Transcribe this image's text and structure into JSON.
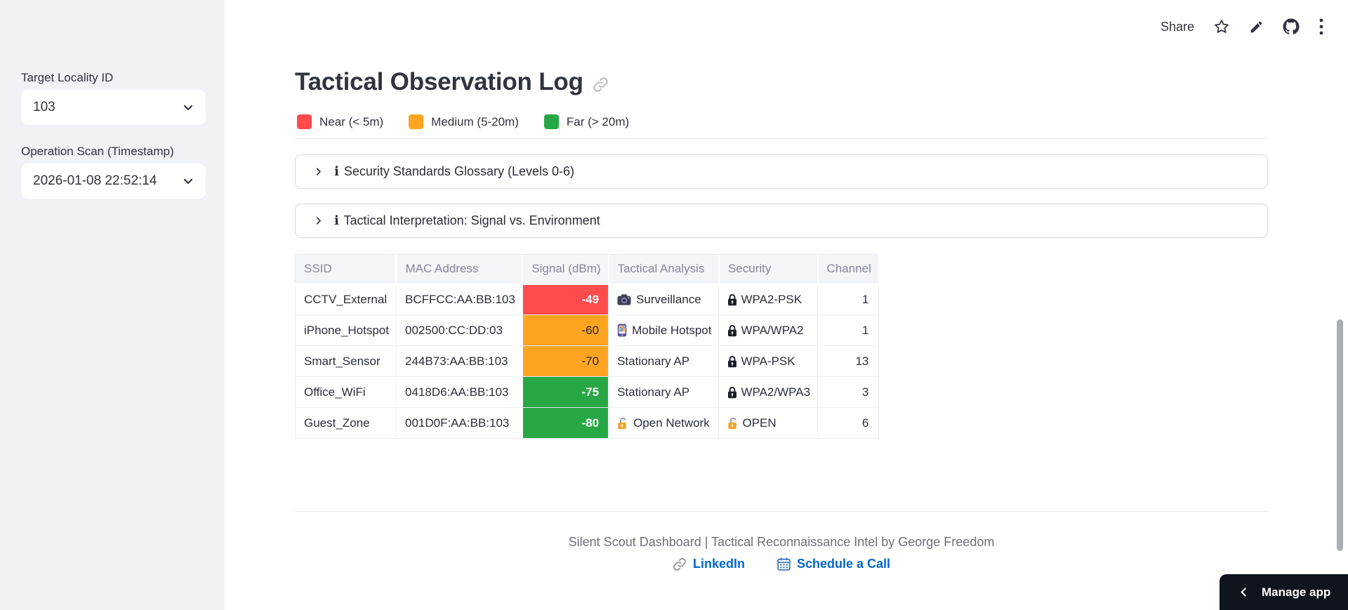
{
  "toolbar": {
    "share_label": "Share",
    "icons": [
      "star-icon",
      "edit-icon",
      "github-icon",
      "overflow-menu-icon"
    ]
  },
  "sidebar": {
    "fields": [
      {
        "label": "Target Locality ID",
        "value": "103"
      },
      {
        "label": "Operation Scan (Timestamp)",
        "value": "2026-01-08 22:52:14"
      }
    ]
  },
  "main": {
    "title": "Tactical Observation Log",
    "legend": [
      {
        "label": "Near (< 5m)",
        "color": "#ff4b4b"
      },
      {
        "label": "Medium (5-20m)",
        "color": "#ffa421"
      },
      {
        "label": "Far (> 20m)",
        "color": "#28a745"
      }
    ],
    "expanders": [
      {
        "icon": "ℹ",
        "label": "Security Standards Glossary (Levels 0-6)"
      },
      {
        "icon": "ℹ",
        "label": "Tactical Interpretation: Signal vs. Environment"
      }
    ]
  },
  "table": {
    "columns": [
      "SSID",
      "MAC Address",
      "Signal (dBm)",
      "Tactical Analysis",
      "Security",
      "Channel"
    ],
    "rows": [
      {
        "ssid": "CCTV_External",
        "mac": "BCFFCC:AA:BB:103",
        "signal": "-49",
        "signal_bg": "#ff4b4b",
        "signal_fg": "#ffffff",
        "analysis": "Surveillance",
        "analysis_icon": "camera-icon",
        "security": "WPA2-PSK",
        "security_icon": "lock-icon",
        "channel": "1"
      },
      {
        "ssid": "iPhone_Hotspot",
        "mac": "002500:CC:DD:03",
        "signal": "-60",
        "signal_bg": "#ffa421",
        "signal_fg": "#262730",
        "analysis": "Mobile Hotspot",
        "analysis_icon": "phone-icon",
        "security": "WPA/WPA2",
        "security_icon": "lock-icon",
        "channel": "1"
      },
      {
        "ssid": "Smart_Sensor",
        "mac": "244B73:AA:BB:103",
        "signal": "-70",
        "signal_bg": "#ffa421",
        "signal_fg": "#262730",
        "analysis": "Stationary AP",
        "analysis_icon": "",
        "security": "WPA-PSK",
        "security_icon": "lock-icon",
        "channel": "13"
      },
      {
        "ssid": "Office_WiFi",
        "mac": "0418D6:AA:BB:103",
        "signal": "-75",
        "signal_bg": "#28a745",
        "signal_fg": "#ffffff",
        "analysis": "Stationary AP",
        "analysis_icon": "",
        "security": "WPA2/WPA3",
        "security_icon": "lock-icon",
        "channel": "3"
      },
      {
        "ssid": "Guest_Zone",
        "mac": "001D0F:AA:BB:103",
        "signal": "-80",
        "signal_bg": "#28a745",
        "signal_fg": "#ffffff",
        "analysis": "Open Network",
        "analysis_icon": "open-lock-icon",
        "security": "OPEN",
        "security_icon": "open-lock-icon",
        "channel": "6"
      }
    ]
  },
  "footer": {
    "credit": "Silent Scout Dashboard | Tactical Reconnaissance Intel by George Freedom",
    "links": [
      {
        "label": "LinkedIn",
        "icon": "link-icon"
      },
      {
        "label": "Schedule a Call",
        "icon": "calendar-icon"
      }
    ],
    "link_color": "#0068c9"
  },
  "manage_app": {
    "label": "Manage app"
  }
}
